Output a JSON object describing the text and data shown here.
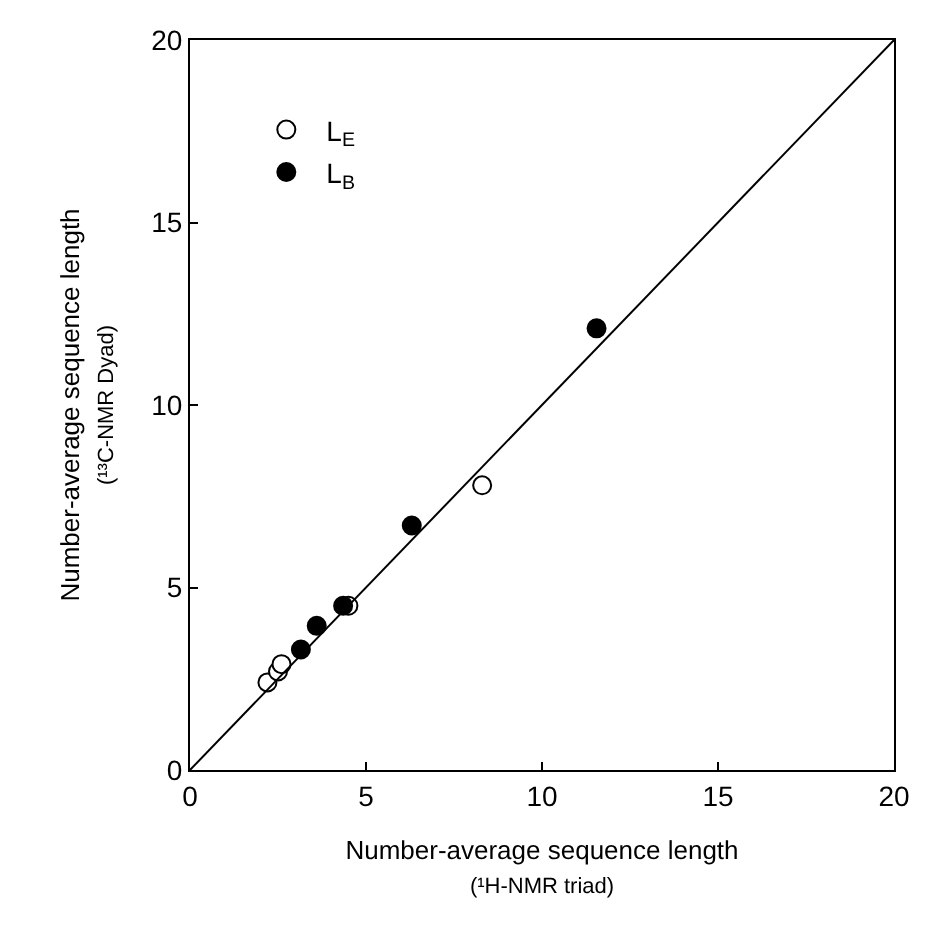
{
  "chart_data": {
    "type": "scatter",
    "xlabel": "Number-average sequence length\n(¹H-NMR triad)",
    "ylabel": "Number-average sequence length\n(¹³C-NMR Dyad)",
    "xlim": [
      0,
      20
    ],
    "ylim": [
      0,
      20
    ],
    "xticks": [
      0,
      5,
      10,
      15,
      20
    ],
    "yticks": [
      0,
      5,
      10,
      15,
      20
    ],
    "legend": "top left",
    "marker": "circle",
    "series": [
      {
        "name": "L$_{E}$",
        "color": "#ffffff",
        "x": [
          2.2,
          2.5,
          2.6,
          4.5,
          8.3
        ],
        "values": [
          2.4,
          2.7,
          2.9,
          4.5,
          7.8
        ]
      },
      {
        "name": "L$_{B}$",
        "color": "#000000",
        "x": [
          3.15,
          3.6,
          4.35,
          6.3,
          11.55
        ],
        "values": [
          3.3,
          3.95,
          4.5,
          6.7,
          12.1
        ]
      },
      {
        "type": "line",
        "marker": "none",
        "color": "#000000",
        "x": [
          0,
          20
        ],
        "values": [
          0,
          20
        ]
      }
    ]
  }
}
